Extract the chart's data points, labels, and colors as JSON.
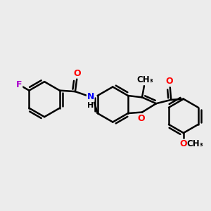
{
  "background_color": "#ececec",
  "bond_color": "#000000",
  "bond_width": 1.8,
  "atom_colors": {
    "F": "#aa00cc",
    "O": "#ff0000",
    "N": "#0000ff",
    "C": "#000000",
    "H": "#000000"
  },
  "figsize": [
    3.0,
    3.0
  ],
  "dpi": 100,
  "xlim": [
    0,
    10
  ],
  "ylim": [
    0,
    10
  ]
}
